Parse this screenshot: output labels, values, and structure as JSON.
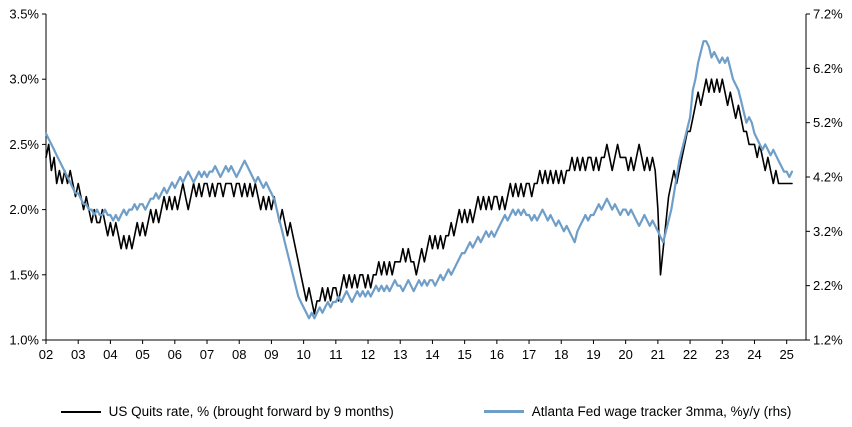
{
  "chart_data": {
    "type": "line",
    "title": "",
    "grid": false,
    "legend_position": "bottom",
    "x": {
      "start_year": 2002,
      "frequency": "monthly",
      "x_max": 2025.6,
      "tick_labels": [
        "02",
        "03",
        "04",
        "05",
        "06",
        "07",
        "08",
        "09",
        "10",
        "11",
        "12",
        "13",
        "14",
        "15",
        "16",
        "17",
        "18",
        "19",
        "20",
        "21",
        "22",
        "23",
        "24",
        "25"
      ]
    },
    "left_axis": {
      "min": 1.0,
      "max": 3.5,
      "tick_values": [
        1.0,
        1.5,
        2.0,
        2.5,
        3.0,
        3.5
      ],
      "tick_labels": [
        "1.0%",
        "1.5%",
        "2.0%",
        "2.5%",
        "3.0%",
        "3.5%"
      ]
    },
    "right_axis": {
      "min": 1.2,
      "max": 7.2,
      "tick_values": [
        1.2,
        2.2,
        3.2,
        4.2,
        5.2,
        6.2,
        7.2
      ],
      "tick_labels": [
        "1.2%",
        "2.2%",
        "3.2%",
        "4.2%",
        "5.2%",
        "6.2%",
        "7.2%"
      ]
    },
    "series": [
      {
        "name": "US Quits rate, % (brought forward by 9 months)",
        "axis": "left",
        "color": "#000000",
        "values": [
          2.4,
          2.5,
          2.3,
          2.4,
          2.2,
          2.3,
          2.2,
          2.3,
          2.2,
          2.3,
          2.2,
          2.1,
          2.2,
          2.1,
          2.0,
          2.1,
          2.0,
          1.9,
          2.0,
          1.9,
          1.9,
          2.0,
          1.9,
          1.8,
          1.9,
          1.8,
          1.9,
          1.8,
          1.7,
          1.8,
          1.7,
          1.8,
          1.7,
          1.8,
          1.9,
          1.8,
          1.9,
          1.8,
          1.9,
          2.0,
          1.9,
          2.0,
          1.9,
          2.0,
          2.1,
          2.0,
          2.1,
          2.0,
          2.1,
          2.0,
          2.1,
          2.2,
          2.1,
          2.0,
          2.1,
          2.2,
          2.1,
          2.2,
          2.1,
          2.2,
          2.2,
          2.1,
          2.2,
          2.1,
          2.2,
          2.2,
          2.1,
          2.2,
          2.2,
          2.2,
          2.1,
          2.2,
          2.2,
          2.1,
          2.2,
          2.1,
          2.2,
          2.1,
          2.2,
          2.1,
          2.0,
          2.1,
          2.0,
          2.1,
          2.0,
          2.1,
          2.0,
          1.9,
          2.0,
          1.9,
          1.8,
          1.9,
          1.8,
          1.7,
          1.6,
          1.5,
          1.4,
          1.3,
          1.4,
          1.3,
          1.2,
          1.3,
          1.3,
          1.4,
          1.3,
          1.4,
          1.3,
          1.4,
          1.4,
          1.3,
          1.4,
          1.5,
          1.4,
          1.5,
          1.4,
          1.5,
          1.4,
          1.5,
          1.5,
          1.4,
          1.5,
          1.4,
          1.5,
          1.5,
          1.6,
          1.5,
          1.6,
          1.5,
          1.6,
          1.5,
          1.6,
          1.6,
          1.6,
          1.7,
          1.6,
          1.7,
          1.6,
          1.6,
          1.5,
          1.6,
          1.7,
          1.6,
          1.7,
          1.8,
          1.7,
          1.8,
          1.7,
          1.8,
          1.7,
          1.8,
          1.8,
          1.9,
          1.8,
          1.9,
          2.0,
          1.9,
          2.0,
          1.9,
          2.0,
          1.9,
          2.0,
          2.1,
          2.0,
          2.1,
          2.0,
          2.1,
          2.0,
          2.1,
          2.1,
          2.0,
          2.1,
          2.0,
          2.1,
          2.2,
          2.1,
          2.2,
          2.1,
          2.2,
          2.1,
          2.2,
          2.2,
          2.1,
          2.2,
          2.2,
          2.3,
          2.2,
          2.3,
          2.2,
          2.3,
          2.2,
          2.3,
          2.2,
          2.3,
          2.2,
          2.3,
          2.3,
          2.4,
          2.3,
          2.4,
          2.3,
          2.4,
          2.3,
          2.4,
          2.4,
          2.3,
          2.4,
          2.3,
          2.4,
          2.4,
          2.5,
          2.4,
          2.3,
          2.4,
          2.5,
          2.4,
          2.4,
          2.4,
          2.3,
          2.4,
          2.3,
          2.4,
          2.5,
          2.4,
          2.3,
          2.4,
          2.3,
          2.4,
          2.3,
          2.0,
          1.5,
          1.7,
          1.9,
          2.1,
          2.2,
          2.3,
          2.2,
          2.3,
          2.4,
          2.5,
          2.6,
          2.6,
          2.7,
          2.8,
          2.9,
          2.8,
          2.9,
          3.0,
          2.9,
          3.0,
          2.9,
          3.0,
          2.9,
          3.0,
          2.9,
          2.8,
          2.9,
          2.8,
          2.7,
          2.8,
          2.7,
          2.6,
          2.6,
          2.5,
          2.5,
          2.5,
          2.4,
          2.5,
          2.4,
          2.3,
          2.4,
          2.3,
          2.2,
          2.3,
          2.2,
          2.2,
          2.2,
          2.2,
          2.2,
          2.2
        ]
      },
      {
        "name": "Atlanta Fed wage tracker 3mma, %y/y (rhs)",
        "axis": "right",
        "color": "#6F9EC8",
        "values": [
          5.0,
          4.9,
          4.8,
          4.7,
          4.6,
          4.5,
          4.4,
          4.3,
          4.2,
          4.1,
          4.0,
          3.9,
          3.9,
          3.8,
          3.7,
          3.7,
          3.6,
          3.6,
          3.5,
          3.6,
          3.5,
          3.5,
          3.6,
          3.5,
          3.5,
          3.4,
          3.5,
          3.4,
          3.5,
          3.6,
          3.5,
          3.6,
          3.6,
          3.7,
          3.6,
          3.7,
          3.7,
          3.6,
          3.7,
          3.8,
          3.8,
          3.9,
          3.8,
          3.9,
          4.0,
          3.9,
          4.0,
          4.1,
          4.0,
          4.1,
          4.2,
          4.1,
          4.2,
          4.3,
          4.2,
          4.1,
          4.2,
          4.3,
          4.2,
          4.3,
          4.2,
          4.3,
          4.3,
          4.4,
          4.3,
          4.2,
          4.3,
          4.4,
          4.3,
          4.4,
          4.3,
          4.2,
          4.3,
          4.4,
          4.5,
          4.4,
          4.3,
          4.2,
          4.1,
          4.2,
          4.1,
          4.0,
          4.1,
          4.0,
          3.9,
          3.8,
          3.6,
          3.4,
          3.2,
          3.0,
          2.8,
          2.6,
          2.4,
          2.2,
          2.0,
          1.9,
          1.8,
          1.7,
          1.6,
          1.7,
          1.6,
          1.7,
          1.8,
          1.7,
          1.8,
          1.9,
          1.8,
          1.9,
          1.9,
          2.0,
          1.9,
          2.0,
          2.1,
          2.0,
          1.9,
          2.0,
          2.1,
          2.0,
          2.1,
          2.0,
          2.1,
          2.0,
          2.1,
          2.2,
          2.1,
          2.2,
          2.1,
          2.2,
          2.1,
          2.2,
          2.3,
          2.2,
          2.2,
          2.1,
          2.2,
          2.3,
          2.2,
          2.1,
          2.2,
          2.3,
          2.2,
          2.3,
          2.2,
          2.3,
          2.3,
          2.2,
          2.3,
          2.4,
          2.3,
          2.4,
          2.5,
          2.4,
          2.5,
          2.6,
          2.7,
          2.8,
          2.8,
          2.9,
          3.0,
          2.9,
          3.0,
          3.1,
          3.0,
          3.1,
          3.2,
          3.1,
          3.2,
          3.1,
          3.2,
          3.3,
          3.4,
          3.5,
          3.4,
          3.5,
          3.6,
          3.5,
          3.6,
          3.5,
          3.6,
          3.5,
          3.5,
          3.4,
          3.5,
          3.4,
          3.5,
          3.6,
          3.5,
          3.4,
          3.5,
          3.4,
          3.3,
          3.4,
          3.3,
          3.2,
          3.3,
          3.2,
          3.1,
          3.0,
          3.2,
          3.3,
          3.4,
          3.5,
          3.4,
          3.5,
          3.5,
          3.6,
          3.7,
          3.6,
          3.7,
          3.8,
          3.7,
          3.6,
          3.7,
          3.6,
          3.5,
          3.6,
          3.6,
          3.5,
          3.6,
          3.5,
          3.4,
          3.3,
          3.4,
          3.5,
          3.4,
          3.3,
          3.4,
          3.3,
          3.2,
          3.1,
          3.0,
          3.2,
          3.4,
          3.6,
          3.9,
          4.2,
          4.5,
          4.7,
          4.9,
          5.1,
          5.3,
          5.8,
          6.0,
          6.3,
          6.5,
          6.7,
          6.7,
          6.6,
          6.4,
          6.5,
          6.4,
          6.3,
          6.4,
          6.3,
          6.4,
          6.2,
          6.0,
          5.9,
          5.8,
          5.6,
          5.4,
          5.2,
          5.3,
          5.2,
          5.0,
          4.9,
          4.8,
          4.7,
          4.8,
          4.7,
          4.6,
          4.7,
          4.6,
          4.5,
          4.4,
          4.3,
          4.3,
          4.2,
          4.3
        ]
      }
    ]
  }
}
